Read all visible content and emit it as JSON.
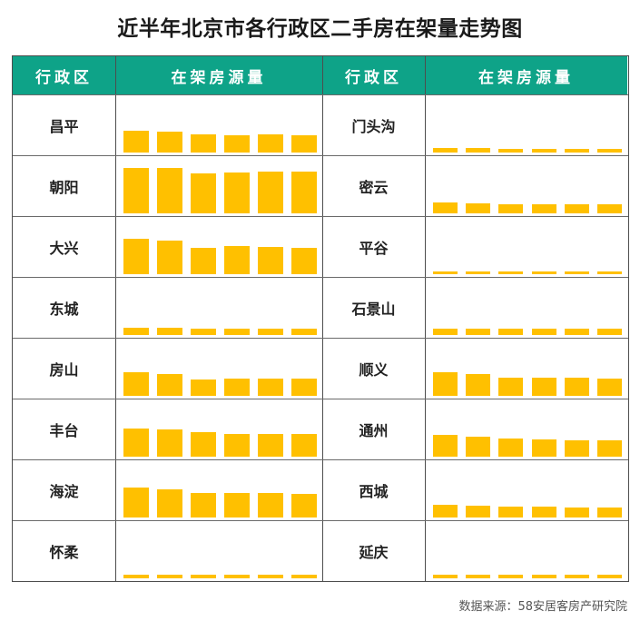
{
  "title": "近半年北京市各行政区二手房在架量走势图",
  "headers": {
    "district": "行政区",
    "listing": "在架房源量"
  },
  "source": "数据来源：58安居客房产研究院",
  "colors": {
    "header_bg": "#0ea388",
    "bar": "#ffc000",
    "border": "#4d4d4d"
  },
  "chart_data": {
    "type": "bar",
    "layout": "small-multiples",
    "ylim": [
      0,
      60
    ],
    "periods": 6,
    "districts": [
      {
        "name": "昌平",
        "values": [
          24,
          23,
          20,
          19,
          20,
          19
        ]
      },
      {
        "name": "朝阳",
        "values": [
          50,
          50,
          44,
          45,
          46,
          46
        ]
      },
      {
        "name": "大兴",
        "values": [
          39,
          37,
          29,
          31,
          30,
          29
        ]
      },
      {
        "name": "东城",
        "values": [
          8,
          8,
          7,
          7,
          7,
          7
        ]
      },
      {
        "name": "房山",
        "values": [
          26,
          24,
          18,
          19,
          19,
          19
        ]
      },
      {
        "name": "丰台",
        "values": [
          31,
          30,
          27,
          25,
          25,
          25
        ]
      },
      {
        "name": "海淀",
        "values": [
          33,
          31,
          27,
          27,
          27,
          26
        ]
      },
      {
        "name": "怀柔",
        "values": [
          4,
          4,
          4,
          4,
          4,
          4
        ]
      },
      {
        "name": "门头沟",
        "values": [
          5,
          5,
          4,
          4,
          4,
          4
        ]
      },
      {
        "name": "密云",
        "values": [
          12,
          11,
          10,
          10,
          10,
          10
        ]
      },
      {
        "name": "平谷",
        "values": [
          3,
          3,
          3,
          3,
          3,
          3
        ]
      },
      {
        "name": "石景山",
        "values": [
          7,
          7,
          7,
          7,
          7,
          7
        ]
      },
      {
        "name": "顺义",
        "values": [
          26,
          24,
          20,
          20,
          20,
          19
        ]
      },
      {
        "name": "通州",
        "values": [
          24,
          22,
          20,
          19,
          18,
          18
        ]
      },
      {
        "name": "西城",
        "values": [
          14,
          13,
          12,
          12,
          11,
          11
        ]
      },
      {
        "name": "延庆",
        "values": [
          4,
          4,
          4,
          4,
          4,
          4
        ]
      }
    ]
  }
}
